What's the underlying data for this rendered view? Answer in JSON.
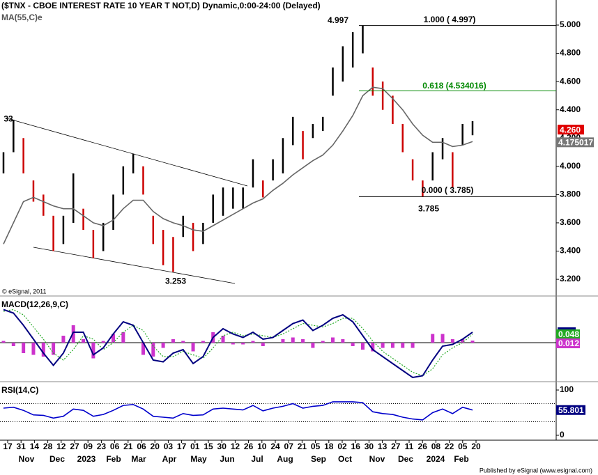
{
  "chart_data": [
    {
      "type": "ohlc",
      "title": "($TNX - CBOE INTEREST RATE 10 YEAR T NOT,D) Dynamic,0:00-24:00 (Delayed)",
      "copyright": "© eSignal, 2011",
      "high": [
        4.1,
        4.33,
        4.2,
        3.9,
        3.8,
        3.65,
        3.65,
        3.95,
        3.7,
        3.55,
        3.6,
        3.8,
        4.0,
        4.09,
        4.0,
        3.65,
        3.55,
        3.5,
        3.65,
        3.6,
        3.6,
        3.8,
        3.85,
        3.85,
        3.85,
        4.05,
        3.9,
        4.05,
        4.2,
        4.35,
        4.25,
        4.3,
        4.35,
        4.7,
        4.85,
        4.95,
        4.997,
        4.7,
        4.6,
        4.5,
        4.3,
        4.05,
        3.9,
        4.1,
        4.2,
        4.1,
        4.3,
        4.32
      ],
      "low": [
        3.95,
        4.1,
        3.95,
        3.75,
        3.65,
        3.4,
        3.45,
        3.6,
        3.55,
        3.35,
        3.4,
        3.55,
        3.8,
        3.95,
        3.8,
        3.45,
        3.3,
        3.253,
        3.5,
        3.4,
        3.45,
        3.6,
        3.65,
        3.7,
        3.7,
        3.85,
        3.78,
        3.9,
        3.95,
        4.15,
        4.05,
        4.2,
        4.25,
        4.5,
        4.6,
        4.7,
        4.8,
        4.5,
        4.4,
        4.3,
        4.1,
        3.9,
        3.785,
        3.9,
        4.05,
        3.85,
        4.15,
        4.22
      ],
      "up_color": "#000000",
      "down_color": "#cc0000",
      "last_value": 4.26,
      "last_value_label": "4.260",
      "last_color": "#e00000",
      "series": [
        {
          "name": "MA(55,C)e",
          "color": "#666666",
          "values": [
            3.45,
            3.6,
            3.75,
            3.78,
            3.75,
            3.72,
            3.7,
            3.7,
            3.65,
            3.6,
            3.58,
            3.62,
            3.7,
            3.76,
            3.76,
            3.68,
            3.63,
            3.6,
            3.58,
            3.55,
            3.54,
            3.58,
            3.62,
            3.66,
            3.7,
            3.74,
            3.77,
            3.83,
            3.88,
            3.94,
            3.99,
            4.04,
            4.08,
            4.15,
            4.25,
            4.36,
            4.5,
            4.56,
            4.55,
            4.48,
            4.4,
            4.3,
            4.22,
            4.17,
            4.17,
            4.14,
            4.15,
            4.175017
          ]
        }
      ],
      "fib_levels": [
        {
          "value": 4.997,
          "label": "1.000 ( 4.997)",
          "color": "#000000"
        },
        {
          "value": 4.534016,
          "label": "0.618 (4.534016)",
          "color": "#008800"
        },
        {
          "value": 3.785,
          "label": "0.000 ( 3.785)",
          "color": "#000000"
        }
      ],
      "annotations": [
        {
          "value": 4.997,
          "label": "4.997"
        },
        {
          "value": 3.785,
          "label": "3.785"
        },
        {
          "value": 3.253,
          "label": "3.253"
        },
        {
          "value": 4.333,
          "label": "33"
        }
      ],
      "ylim": [
        3.082,
        5.1775
      ],
      "yticks": [
        {
          "value": 5.0,
          "label": "5.000"
        },
        {
          "value": 4.8,
          "label": "4.800"
        },
        {
          "value": 4.6,
          "label": "4.600"
        },
        {
          "value": 4.4,
          "label": "4.400"
        },
        {
          "value": 4.2,
          "label": "4.200"
        },
        {
          "value": 4.0,
          "label": "4.000"
        },
        {
          "value": 3.8,
          "label": "3.800"
        },
        {
          "value": 3.6,
          "label": "3.600"
        },
        {
          "value": 3.4,
          "label": "3.400"
        },
        {
          "value": 3.2,
          "label": "3.200"
        }
      ]
    },
    {
      "type": "macd",
      "title": "MACD(12,26,9,C)",
      "series": [
        {
          "name": "MACD",
          "color": "#000080",
          "values": [
            0.19,
            0.17,
            0.1,
            0.02,
            -0.06,
            -0.13,
            -0.06,
            0.06,
            0.06,
            -0.07,
            -0.03,
            0.05,
            0.12,
            0.1,
            0.0,
            -0.1,
            -0.11,
            -0.06,
            -0.04,
            -0.12,
            -0.08,
            0.03,
            0.08,
            0.05,
            0.03,
            0.06,
            0.02,
            0.03,
            0.07,
            0.11,
            0.13,
            0.07,
            0.1,
            0.14,
            0.16,
            0.12,
            0.04,
            -0.04,
            -0.08,
            -0.12,
            -0.16,
            -0.2,
            -0.19,
            -0.1,
            -0.02,
            -0.01,
            0.02,
            0.06
          ]
        },
        {
          "name": "Signal",
          "color": "#22aa22",
          "values": [
            0.18,
            0.19,
            0.16,
            0.09,
            0.02,
            -0.06,
            -0.1,
            -0.04,
            0.04,
            0.02,
            -0.04,
            0.0,
            0.06,
            0.1,
            0.07,
            -0.02,
            -0.08,
            -0.08,
            -0.05,
            -0.07,
            -0.09,
            -0.03,
            0.04,
            0.06,
            0.04,
            0.05,
            0.04,
            0.03,
            0.05,
            0.08,
            0.11,
            0.1,
            0.09,
            0.11,
            0.14,
            0.14,
            0.08,
            0.01,
            -0.05,
            -0.09,
            -0.13,
            -0.17,
            -0.19,
            -0.15,
            -0.07,
            -0.03,
            0.0,
            0.048
          ]
        },
        {
          "name": "Histogram",
          "color": "#cc33cc",
          "values": [
            0.01,
            -0.02,
            -0.06,
            -0.07,
            -0.08,
            -0.07,
            0.04,
            0.1,
            0.02,
            -0.09,
            0.01,
            0.05,
            0.06,
            0.0,
            -0.07,
            -0.08,
            -0.03,
            0.02,
            0.01,
            -0.05,
            0.01,
            0.06,
            0.04,
            -0.01,
            -0.01,
            0.01,
            -0.02,
            0.0,
            0.02,
            0.03,
            0.02,
            -0.03,
            0.01,
            0.03,
            0.02,
            -0.02,
            -0.04,
            -0.05,
            -0.03,
            -0.03,
            -0.03,
            -0.03,
            0.0,
            0.05,
            0.05,
            0.02,
            0.02,
            0.012
          ]
        }
      ],
      "ylim": [
        -0.224,
        0.26
      ]
    },
    {
      "type": "line",
      "title": "RSI(14,C)",
      "series": [
        {
          "name": "RSI",
          "color": "#0000cc",
          "values": [
            60,
            62,
            55,
            45,
            44,
            38,
            42,
            58,
            55,
            42,
            46,
            55,
            66,
            68,
            58,
            42,
            40,
            38,
            48,
            44,
            45,
            58,
            60,
            58,
            56,
            66,
            54,
            60,
            64,
            70,
            60,
            64,
            66,
            74,
            74,
            74,
            72,
            52,
            48,
            46,
            40,
            36,
            34,
            50,
            58,
            48,
            62,
            55.801
          ]
        }
      ],
      "levels": [
        70,
        30
      ],
      "ylim": [
        -10.8,
        115.4
      ],
      "yticks": [
        100,
        0
      ]
    }
  ],
  "x_axis": {
    "ticks": [
      "17",
      "31",
      "14",
      "28",
      "12",
      "27",
      "09",
      "23",
      "06",
      "21",
      "06",
      "20",
      "03",
      "17",
      "01",
      "15",
      "30",
      "12",
      "26",
      "10",
      "24",
      "07",
      "21",
      "05",
      "18",
      "02",
      "16",
      "30",
      "13",
      "27",
      "11",
      "26",
      "08",
      "22",
      "05",
      "20"
    ],
    "months": [
      "Nov",
      "Dec",
      "2023",
      "Feb",
      "Mar",
      "Apr",
      "May",
      "Jun",
      "Jul",
      "Aug",
      "Sep",
      "Oct",
      "Nov",
      "Dec",
      "2024",
      "Feb"
    ]
  },
  "footer": "Published by eSignal (www.esignal.com)"
}
